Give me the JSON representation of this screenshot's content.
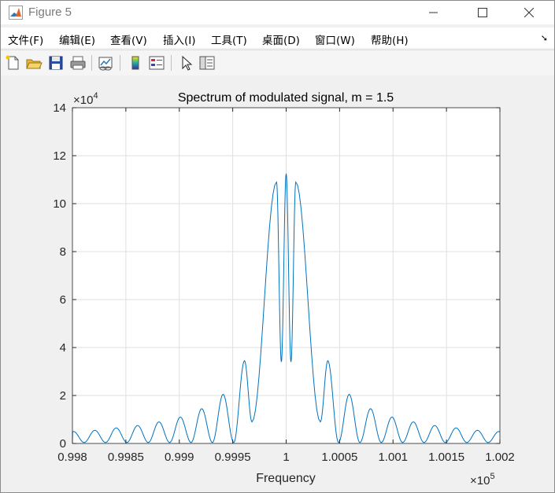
{
  "window": {
    "title": "Figure 5"
  },
  "menu": {
    "items": [
      "文件(F)",
      "编辑(E)",
      "查看(V)",
      "插入(I)",
      "工具(T)",
      "桌面(D)",
      "窗口(W)",
      "帮助(H)"
    ]
  },
  "toolbar": {
    "tools": [
      "new-figure-icon",
      "open-file-icon",
      "save-icon",
      "print-icon",
      "link-plot-icon",
      "colorbar-icon",
      "legend-icon",
      "pointer-icon",
      "property-inspector-icon"
    ]
  },
  "chart_data": {
    "type": "line",
    "title": "Spectrum of modulated signal, m = 1.5",
    "xlabel": "Frequency",
    "ylabel": "",
    "x_exponent_label": "×10",
    "x_exponent": "5",
    "y_exponent_label": "×10",
    "y_exponent": "4",
    "xlim": [
      0.998,
      1.002
    ],
    "ylim": [
      0,
      14
    ],
    "xticks": [
      0.998,
      0.9985,
      0.999,
      0.9995,
      1,
      1.0005,
      1.001,
      1.0015,
      1.002
    ],
    "xtick_labels": [
      "0.998",
      "0.9985",
      "0.999",
      "0.9995",
      "1",
      "1.0005",
      "1.001",
      "1.0015",
      "1.002"
    ],
    "yticks": [
      0,
      2,
      4,
      6,
      8,
      10,
      12,
      14
    ],
    "ytick_labels": [
      "0",
      "2",
      "4",
      "6",
      "8",
      "10",
      "12",
      "14"
    ],
    "grid": true,
    "line_color": "#0072bd",
    "series": [
      {
        "peaks": [
          {
            "x": 0.99801,
            "y": 0.5
          },
          {
            "x": 0.99821,
            "y": 0.55
          },
          {
            "x": 0.99841,
            "y": 0.65
          },
          {
            "x": 0.99861,
            "y": 0.75
          },
          {
            "x": 0.99881,
            "y": 0.9
          },
          {
            "x": 0.99901,
            "y": 1.1
          },
          {
            "x": 0.99921,
            "y": 1.45
          },
          {
            "x": 0.99941,
            "y": 2.05
          },
          {
            "x": 0.99961,
            "y": 3.45
          },
          {
            "x": 0.99991,
            "y": 10.9
          },
          {
            "x": 1.0,
            "y": 11.25
          },
          {
            "x": 1.00009,
            "y": 10.9
          },
          {
            "x": 1.00039,
            "y": 3.45
          },
          {
            "x": 1.00059,
            "y": 2.05
          },
          {
            "x": 1.00079,
            "y": 1.45
          },
          {
            "x": 1.00099,
            "y": 1.1
          },
          {
            "x": 1.00119,
            "y": 0.9
          },
          {
            "x": 1.00139,
            "y": 0.75
          },
          {
            "x": 1.00159,
            "y": 0.65
          },
          {
            "x": 1.00179,
            "y": 0.55
          },
          {
            "x": 1.00199,
            "y": 0.5
          }
        ],
        "troughs": [
          {
            "x": 0.99968,
            "y": 0.9
          },
          {
            "x": 0.999955,
            "y": 3.4
          },
          {
            "x": 1.000045,
            "y": 3.4
          },
          {
            "x": 1.00032,
            "y": 0.9
          }
        ]
      }
    ]
  }
}
